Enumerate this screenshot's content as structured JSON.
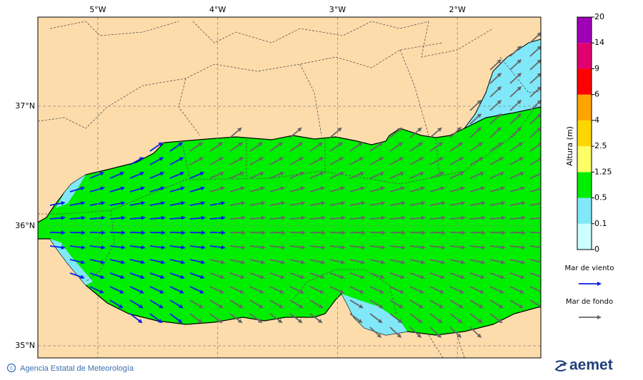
{
  "map": {
    "xlim": [
      -5.5,
      -1.304
    ],
    "ylim": [
      34.899,
      37.744
    ],
    "xticks": [
      {
        "value": -5,
        "label": "5°W"
      },
      {
        "value": -4,
        "label": "4°W"
      },
      {
        "value": -3,
        "label": "3°W"
      },
      {
        "value": -2,
        "label": "2°W"
      }
    ],
    "yticks": [
      {
        "value": 37,
        "label": "37°N"
      },
      {
        "value": 36,
        "label": "36°N"
      },
      {
        "value": 35,
        "label": "35°N"
      }
    ],
    "colorbar": {
      "title": "Altura (m)",
      "levels": [
        0,
        0.1,
        0.5,
        1.25,
        2.5,
        4,
        6,
        9,
        14,
        20
      ],
      "colors": [
        "#ccffff",
        "#80e8f8",
        "#00ee00",
        "#ffff66",
        "#ffd700",
        "#ffa500",
        "#ff0000",
        "#e0006f",
        "#a000b8"
      ]
    },
    "legend": [
      {
        "label": "Mar de viento",
        "color": "#0a1ee6"
      },
      {
        "label": "Mar de fondo",
        "color": "#666666"
      }
    ],
    "footer": {
      "credit": "Agencia Estatal de Meteorología",
      "logo": "aemet"
    }
  }
}
